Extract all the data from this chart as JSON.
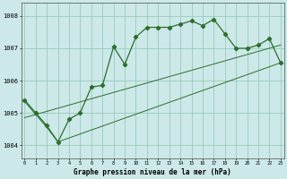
{
  "title": "Graphe pression niveau de la mer (hPa)",
  "background_color": "#cce8e8",
  "grid_color": "#99ccbb",
  "line_color": "#2d6e2d",
  "x_ticks": [
    0,
    1,
    2,
    3,
    4,
    5,
    6,
    7,
    8,
    9,
    10,
    11,
    12,
    13,
    14,
    15,
    16,
    17,
    18,
    19,
    20,
    21,
    22,
    23
  ],
  "ylim": [
    1003.6,
    1008.4
  ],
  "yticks": [
    1004,
    1005,
    1006,
    1007,
    1008
  ],
  "series1": [
    1005.4,
    1005.0,
    1004.6,
    1004.1,
    1004.8,
    1005.0,
    1005.8,
    1005.85,
    1007.05,
    1006.5,
    1007.35,
    1007.65,
    1007.65,
    1007.65,
    1007.75,
    1007.85,
    1007.7,
    1007.9,
    1007.45,
    1007.0,
    1007.0,
    1007.1,
    1007.3,
    1006.55
  ],
  "series2_x": [
    0,
    23
  ],
  "series2_y": [
    1004.85,
    1007.1
  ],
  "series3_x": [
    0,
    2,
    3,
    23
  ],
  "series3_y": [
    1005.35,
    1004.55,
    1004.1,
    1006.55
  ]
}
